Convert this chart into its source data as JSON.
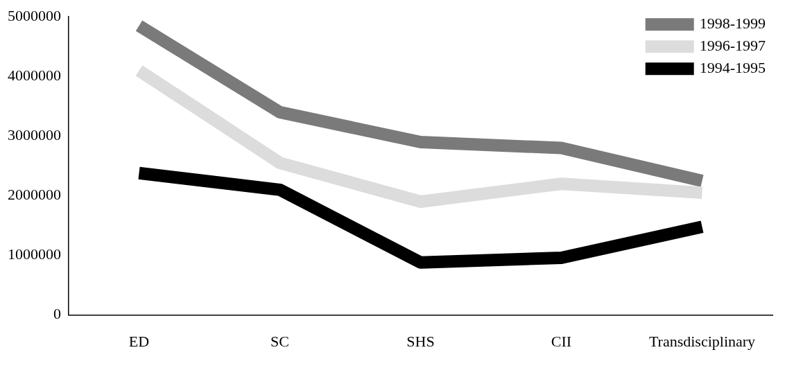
{
  "chart_data": {
    "type": "line",
    "categories": [
      "ED",
      "SC",
      "SHS",
      "CII",
      "Transdisciplinary"
    ],
    "series": [
      {
        "name": "1998-1999",
        "color": "#7a7a7a",
        "values": [
          4850000,
          3400000,
          2900000,
          2800000,
          2250000
        ]
      },
      {
        "name": "1996-1997",
        "color": "#dcdcdc",
        "values": [
          4100000,
          2550000,
          1900000,
          2200000,
          2050000
        ]
      },
      {
        "name": "1994-1995",
        "color": "#000000",
        "values": [
          2380000,
          2100000,
          880000,
          960000,
          1480000
        ]
      }
    ],
    "ylim": [
      0,
      5000000
    ],
    "yticks": [
      0,
      1000000,
      2000000,
      3000000,
      4000000,
      5000000
    ],
    "grid": false,
    "legend": "top right",
    "marker": "none",
    "line_style": "solid"
  }
}
